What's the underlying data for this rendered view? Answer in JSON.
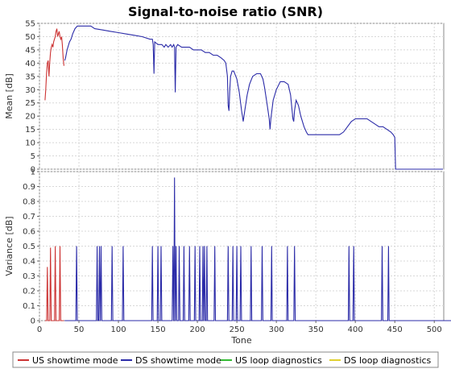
{
  "chart_data": {
    "type": "line",
    "title": "Signal-to-noise ratio (SNR)",
    "xlabel": "Tone",
    "xlim": [
      0,
      512
    ],
    "x_ticks": [
      0,
      50,
      100,
      150,
      200,
      250,
      300,
      350,
      400,
      450,
      500
    ],
    "grid": true,
    "legend_position": "bottom",
    "legend": [
      {
        "name": "US showtime mode",
        "color": "#cc3333"
      },
      {
        "name": "DS showtime mode",
        "color": "#2b2ba8"
      },
      {
        "name": "US loop diagnostics",
        "color": "#33bb33"
      },
      {
        "name": "DS loop diagnostics",
        "color": "#e0d030"
      }
    ],
    "panels": [
      {
        "id": "mean",
        "ylabel": "Mean [dB]",
        "ylim": [
          0,
          55
        ],
        "y_ticks": [
          0,
          5,
          10,
          15,
          20,
          25,
          30,
          35,
          40,
          45,
          50,
          55
        ],
        "series": [
          {
            "name": "US showtime mode",
            "color": "#cc3333",
            "points": [
              [
                7,
                26
              ],
              [
                8,
                30
              ],
              [
                9,
                36
              ],
              [
                10,
                40
              ],
              [
                11,
                41
              ],
              [
                12,
                35
              ],
              [
                13,
                40
              ],
              [
                14,
                44
              ],
              [
                15,
                46
              ],
              [
                16,
                47
              ],
              [
                17,
                46
              ],
              [
                18,
                48
              ],
              [
                19,
                49
              ],
              [
                20,
                50
              ],
              [
                21,
                52
              ],
              [
                22,
                53
              ],
              [
                23,
                50
              ],
              [
                24,
                51
              ],
              [
                25,
                52
              ],
              [
                26,
                50
              ],
              [
                27,
                49
              ],
              [
                28,
                50
              ],
              [
                29,
                47
              ],
              [
                30,
                42
              ],
              [
                31,
                39
              ]
            ]
          },
          {
            "name": "DS showtime mode",
            "color": "#2b2ba8",
            "points": [
              [
                32,
                41
              ],
              [
                33,
                42
              ],
              [
                35,
                45
              ],
              [
                38,
                48
              ],
              [
                40,
                49
              ],
              [
                42,
                51
              ],
              [
                45,
                53
              ],
              [
                48,
                54
              ],
              [
                55,
                54
              ],
              [
                65,
                54
              ],
              [
                70,
                53
              ],
              [
                80,
                52.5
              ],
              [
                90,
                52
              ],
              [
                100,
                51.5
              ],
              [
                110,
                51
              ],
              [
                120,
                50.5
              ],
              [
                130,
                50
              ],
              [
                140,
                49
              ],
              [
                143,
                49
              ],
              [
                144,
                47
              ],
              [
                145,
                36
              ],
              [
                146,
                48
              ],
              [
                150,
                47
              ],
              [
                155,
                47
              ],
              [
                158,
                46
              ],
              [
                160,
                47
              ],
              [
                163,
                46
              ],
              [
                166,
                47
              ],
              [
                168,
                46
              ],
              [
                170,
                47
              ],
              [
                171,
                46
              ],
              [
                172,
                29
              ],
              [
                173,
                46
              ],
              [
                175,
                47
              ],
              [
                180,
                46
              ],
              [
                185,
                46
              ],
              [
                190,
                46
              ],
              [
                195,
                45
              ],
              [
                200,
                45
              ],
              [
                205,
                45
              ],
              [
                210,
                44
              ],
              [
                215,
                44
              ],
              [
                220,
                43
              ],
              [
                225,
                43
              ],
              [
                230,
                42
              ],
              [
                234,
                41
              ],
              [
                236,
                40
              ],
              [
                238,
                35
              ],
              [
                239,
                24
              ],
              [
                240,
                22
              ],
              [
                241,
                30
              ],
              [
                242,
                35
              ],
              [
                244,
                37
              ],
              [
                246,
                37
              ],
              [
                250,
                34
              ],
              [
                253,
                29
              ],
              [
                256,
                22
              ],
              [
                258,
                18
              ],
              [
                260,
                22
              ],
              [
                263,
                28
              ],
              [
                266,
                32
              ],
              [
                270,
                35
              ],
              [
                275,
                36
              ],
              [
                280,
                36
              ],
              [
                283,
                34
              ],
              [
                285,
                31
              ],
              [
                288,
                25
              ],
              [
                291,
                19
              ],
              [
                292,
                15
              ],
              [
                293,
                19
              ],
              [
                296,
                26
              ],
              [
                300,
                30
              ],
              [
                305,
                33
              ],
              [
                310,
                33
              ],
              [
                315,
                32
              ],
              [
                318,
                28
              ],
              [
                321,
                19
              ],
              [
                322,
                18
              ],
              [
                323,
                22
              ],
              [
                325,
                26
              ],
              [
                328,
                24
              ],
              [
                331,
                20
              ],
              [
                335,
                16
              ],
              [
                338,
                14
              ],
              [
                340,
                13
              ],
              [
                360,
                13
              ],
              [
                370,
                13
              ],
              [
                380,
                13
              ],
              [
                385,
                14
              ],
              [
                390,
                16
              ],
              [
                395,
                18
              ],
              [
                400,
                19
              ],
              [
                405,
                19
              ],
              [
                410,
                19
              ],
              [
                415,
                19
              ],
              [
                420,
                18
              ],
              [
                425,
                17
              ],
              [
                430,
                16
              ],
              [
                435,
                16
              ],
              [
                440,
                15
              ],
              [
                445,
                14
              ],
              [
                448,
                13
              ],
              [
                450,
                12
              ],
              [
                451,
                0
              ],
              [
                455,
                0
              ],
              [
                480,
                0
              ],
              [
                511,
                0
              ]
            ]
          }
        ]
      },
      {
        "id": "variance",
        "ylabel": "Variance [dB]",
        "ylim": [
          0,
          1
        ],
        "y_ticks": [
          0,
          0.1,
          0.2,
          0.3,
          0.4,
          0.5,
          0.6,
          0.7,
          0.8,
          0.9,
          1
        ],
        "spike_series": [
          {
            "name": "US showtime mode",
            "color": "#cc3333",
            "spikes": [
              [
                10,
                0.36
              ],
              [
                14,
                0.49
              ],
              [
                20,
                0.5
              ],
              [
                26,
                0.5
              ]
            ],
            "x_range": [
              7,
              31
            ]
          },
          {
            "name": "DS showtime mode",
            "color": "#2b2ba8",
            "spikes": [
              [
                47,
                0.5
              ],
              [
                73,
                0.5
              ],
              [
                76,
                0.5
              ],
              [
                78,
                0.5
              ],
              [
                92,
                0.5
              ],
              [
                106,
                0.5
              ],
              [
                143,
                0.5
              ],
              [
                150,
                0.5
              ],
              [
                154,
                0.5
              ],
              [
                169,
                0.5
              ],
              [
                171,
                0.96
              ],
              [
                173,
                0.5
              ],
              [
                177,
                0.5
              ],
              [
                183,
                0.5
              ],
              [
                190,
                0.5
              ],
              [
                197,
                0.5
              ],
              [
                203,
                0.5
              ],
              [
                207,
                0.5
              ],
              [
                209,
                0.5
              ],
              [
                212,
                0.5
              ],
              [
                222,
                0.5
              ],
              [
                239,
                0.5
              ],
              [
                245,
                0.5
              ],
              [
                250,
                0.5
              ],
              [
                255,
                0.5
              ],
              [
                268,
                0.5
              ],
              [
                282,
                0.5
              ],
              [
                294,
                0.5
              ],
              [
                314,
                0.5
              ],
              [
                323,
                0.5
              ],
              [
                392,
                0.5
              ],
              [
                398,
                0.5
              ],
              [
                434,
                0.5
              ],
              [
                442,
                0.5
              ]
            ],
            "x_range": [
              32,
              550
            ]
          }
        ]
      }
    ]
  }
}
